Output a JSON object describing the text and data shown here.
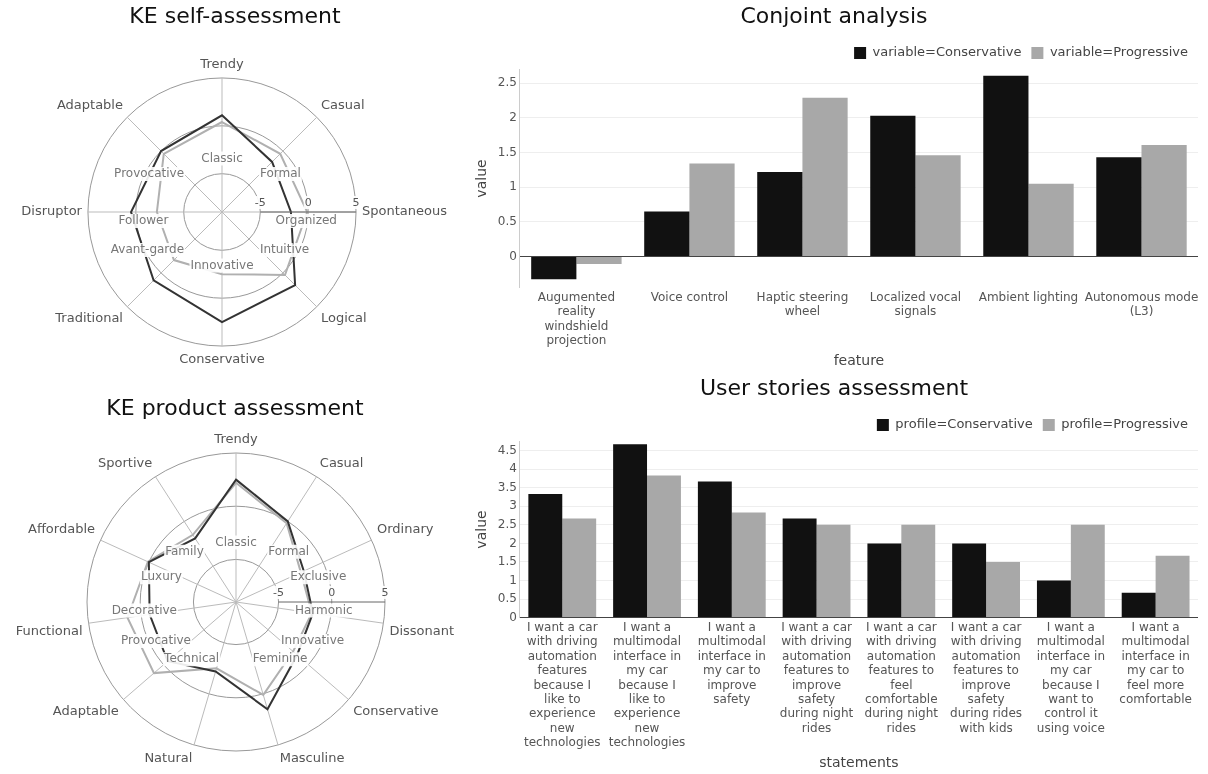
{
  "chart_data": [
    {
      "type": "radar",
      "title": "KE self-assessment",
      "categories": [
        "Trendy",
        "Casual",
        "Spontaneous",
        "Logical",
        "Conservative",
        "Traditional",
        "Disruptor",
        "Adaptable"
      ],
      "series": [
        {
          "color": "#333333",
          "values": [
            1.1,
            -1.6,
            -1.8,
            1.8,
            2.5,
            1.1,
            0.5,
            0
          ]
        },
        {
          "color": "#b0b0b0",
          "values": [
            0.4,
            -0.4,
            -0.1,
            0.3,
            -2.5,
            -1.9,
            -2.2,
            -0.4
          ]
        }
      ],
      "ylim": [
        -9,
        5
      ],
      "yticks": [
        -5,
        0,
        5
      ],
      "grid": true,
      "marker": "none",
      "annotations": [
        "Classic",
        "Formal",
        "Organized",
        "Intuitive",
        "Innovative",
        "Avant-garde",
        "Follower",
        "Provocative"
      ]
    },
    {
      "type": "radar",
      "title": "KE product assessment",
      "categories": [
        "Trendy",
        "Casual",
        "Ordinary",
        "Dissonant",
        "Conservative",
        "Masculine",
        "Natural",
        "Adaptable",
        "Functional",
        "Affordable",
        "Sportive"
      ],
      "series": [
        {
          "color": "#333333",
          "values": [
            2.5,
            0,
            -2,
            -1.7,
            -1.4,
            1.5,
            -2.2,
            -0.5,
            -0.8,
            0,
            -1.9
          ]
        },
        {
          "color": "#b0b0b0",
          "values": [
            2.2,
            -0.2,
            -2.3,
            -1.8,
            -1.9,
            0.1,
            -2.5,
            1.2,
            1.3,
            0.1,
            -1.5
          ]
        }
      ],
      "ylim": [
        -9,
        5
      ],
      "yticks": [
        -5,
        0,
        5
      ],
      "grid": true,
      "marker": "none",
      "annotations": [
        "Classic",
        "Formal",
        "Exclusive",
        "Harmonic",
        "Innovative",
        "Feminine",
        "Technical",
        "Provocative",
        "Decorative",
        "Luxury",
        "Family"
      ]
    },
    {
      "type": "bar",
      "title": "Conjoint analysis",
      "xlabel": "feature",
      "ylabel": "value",
      "categories": [
        "Augumented reality windshield projection",
        "Voice control",
        "Haptic steering wheel",
        "Localized vocal signals",
        "Ambient lighting",
        "Autonomous mode (L3)"
      ],
      "series": [
        {
          "name": "variable=Conservative",
          "color": "#111111",
          "values": [
            -0.33,
            0.65,
            1.22,
            2.03,
            2.61,
            1.43
          ]
        },
        {
          "name": "variable=Progressive",
          "color": "#a8a8a8",
          "values": [
            -0.11,
            1.34,
            2.29,
            1.46,
            1.05,
            1.61
          ]
        }
      ],
      "ylim": [
        -0.45,
        2.7
      ],
      "yticks": [
        0,
        0.5,
        1,
        1.5,
        2,
        2.5
      ],
      "grid": "y",
      "legend": "top right"
    },
    {
      "type": "bar",
      "title": "User stories assessment",
      "xlabel": "statements",
      "ylabel": "value",
      "categories": [
        "I want a car with driving automation features because I like to experience new technologies",
        "I want a multimodal interface in my car because I like to experience new technologies",
        "I want a multimodal interface in my car to improve safety",
        "I want a car with driving automation features to improve safety during night rides",
        "I want a car with driving automation features to feel comfortable during night rides",
        "I want a car with driving automation features to improve safety during rides with kids",
        "I want a multimodal interface in my car because I want to control it using voice",
        "I want a multimodal interface in my car to feel more comfortable"
      ],
      "series": [
        {
          "name": "profile=Conservative",
          "color": "#111111",
          "values": [
            3.33,
            4.67,
            3.67,
            2.67,
            2,
            2,
            1,
            0.67
          ]
        },
        {
          "name": "profile=Progressive",
          "color": "#a8a8a8",
          "values": [
            2.67,
            3.83,
            2.83,
            2.5,
            2.5,
            1.5,
            2.5,
            1.67
          ]
        }
      ],
      "ylim": [
        0,
        4.75
      ],
      "yticks": [
        0,
        0.5,
        1,
        1.5,
        2,
        2.5,
        3,
        3.5,
        4,
        4.5
      ],
      "grid": "y",
      "legend": "top right"
    }
  ]
}
